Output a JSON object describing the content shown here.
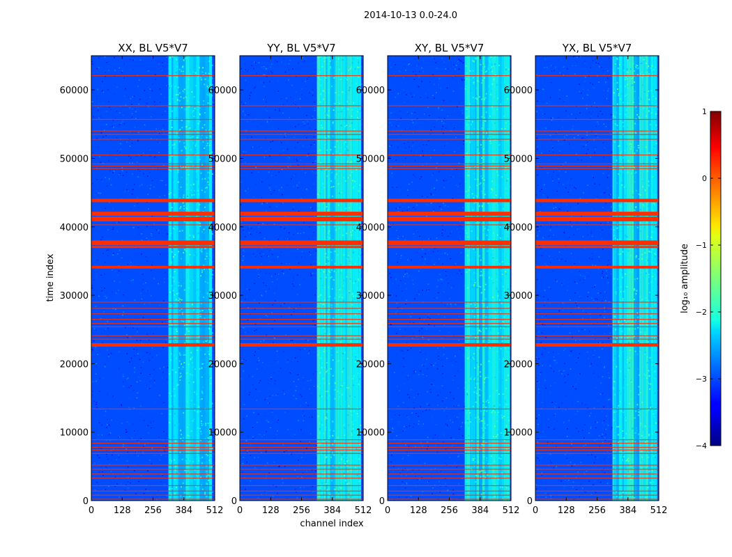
{
  "figure": {
    "suptitle": "2014-10-13 0.0-24.0"
  },
  "chart_data": {
    "type": "heatmap",
    "xlabel": "channel index",
    "ylabel": "time index",
    "xlim": [
      0,
      512
    ],
    "ylim": [
      0,
      65000
    ],
    "xticks": [
      0,
      128,
      256,
      384,
      512
    ],
    "yticks": [
      0,
      10000,
      20000,
      30000,
      40000,
      50000,
      60000
    ],
    "panels": [
      {
        "title": "XX, BL V5*V7",
        "pol": "XX"
      },
      {
        "title": "YY, BL V5*V7",
        "pol": "YY"
      },
      {
        "title": "XY, BL V5*V7",
        "pol": "XY"
      },
      {
        "title": "YX, BL V5*V7",
        "pol": "YX"
      }
    ],
    "colorbar": {
      "label": "log₁₀ amplitude",
      "range": [
        -4,
        1
      ],
      "ticks": [
        1,
        0,
        -1,
        -2,
        -3,
        -4
      ],
      "colormap": "jet"
    },
    "signal_band_channels": [
      320,
      500
    ],
    "background_level": -3.0,
    "band_level": -2.2,
    "flag_level": 0.15,
    "flagged_time_ranges": [
      [
        43600,
        44100
      ],
      [
        41600,
        42200
      ],
      [
        40800,
        41500
      ],
      [
        37300,
        38000
      ],
      [
        36900,
        37200
      ],
      [
        33900,
        34300
      ],
      [
        22500,
        23000
      ]
    ],
    "thin_flag_times": [
      200,
      800,
      1400,
      2200,
      3300,
      3900,
      4600,
      5200,
      6900,
      7400,
      7800,
      8400,
      8900,
      13400,
      23600,
      24100,
      25400,
      25900,
      26500,
      27300,
      28100,
      29000,
      40300,
      48500,
      48900,
      49200,
      50500,
      52800,
      53500,
      54000,
      55700,
      57700,
      62100
    ]
  }
}
